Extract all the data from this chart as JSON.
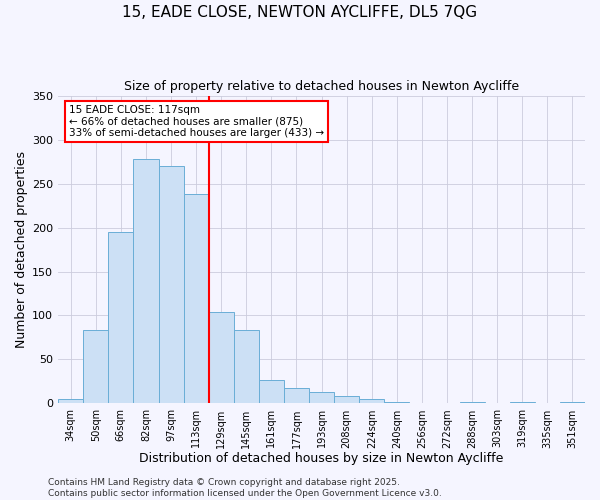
{
  "title": "15, EADE CLOSE, NEWTON AYCLIFFE, DL5 7QG",
  "subtitle": "Size of property relative to detached houses in Newton Aycliffe",
  "xlabel": "Distribution of detached houses by size in Newton Aycliffe",
  "ylabel": "Number of detached properties",
  "bin_labels": [
    "34sqm",
    "50sqm",
    "66sqm",
    "82sqm",
    "97sqm",
    "113sqm",
    "129sqm",
    "145sqm",
    "161sqm",
    "177sqm",
    "193sqm",
    "208sqm",
    "224sqm",
    "240sqm",
    "256sqm",
    "272sqm",
    "288sqm",
    "303sqm",
    "319sqm",
    "335sqm",
    "351sqm"
  ],
  "bar_heights": [
    5,
    83,
    195,
    278,
    270,
    238,
    104,
    83,
    27,
    18,
    13,
    8,
    5,
    2,
    0,
    0,
    2,
    0,
    2,
    0,
    2
  ],
  "bar_color": "#cce0f5",
  "bar_edge_color": "#6aaed6",
  "vline_position": 5.5,
  "vline_color": "red",
  "annotation_title": "15 EADE CLOSE: 117sqm",
  "annotation_line1": "← 66% of detached houses are smaller (875)",
  "annotation_line2": "33% of semi-detached houses are larger (433) →",
  "annotation_box_color": "white",
  "annotation_box_edge": "red",
  "ylim": [
    0,
    350
  ],
  "yticks": [
    0,
    50,
    100,
    150,
    200,
    250,
    300,
    350
  ],
  "footer_line1": "Contains HM Land Registry data © Crown copyright and database right 2025.",
  "footer_line2": "Contains public sector information licensed under the Open Government Licence v3.0.",
  "background_color": "#f5f5ff",
  "title_fontsize": 11,
  "subtitle_fontsize": 9,
  "axis_label_fontsize": 9,
  "tick_label_fontsize": 7,
  "footer_fontsize": 6.5
}
